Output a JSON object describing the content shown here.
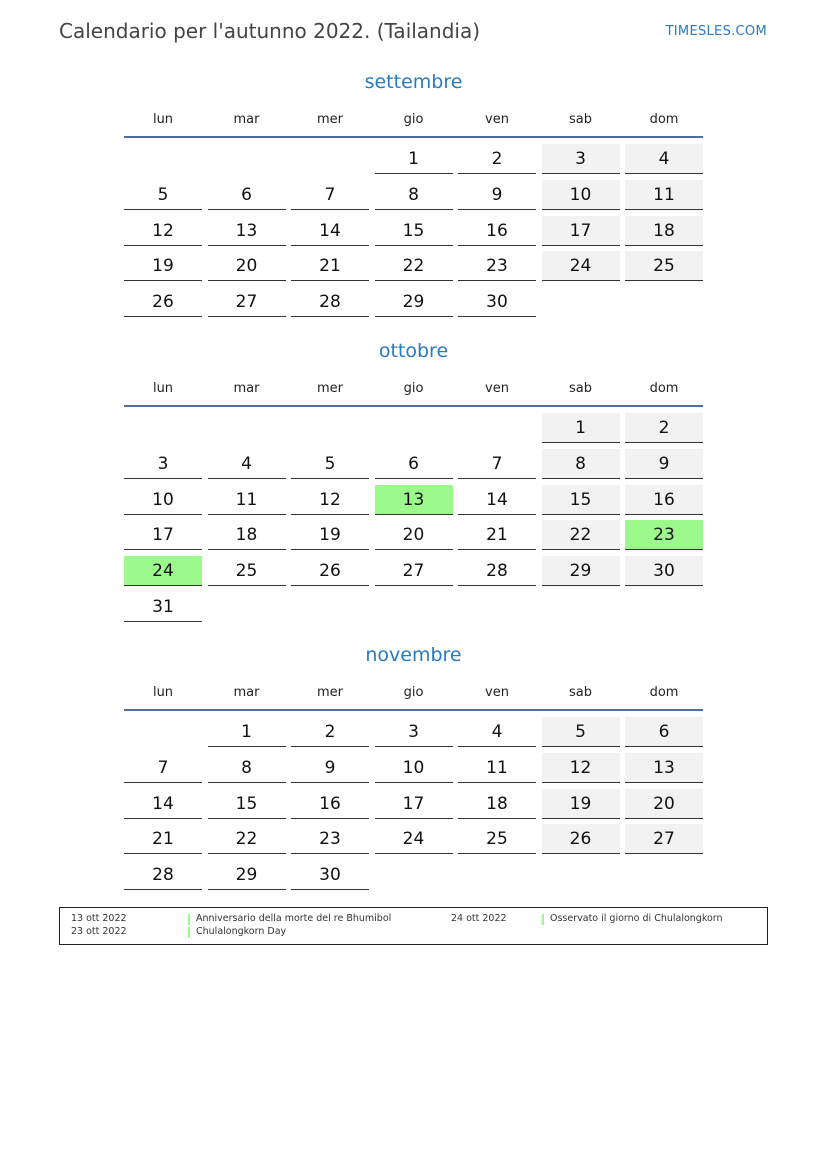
{
  "header": {
    "title": "Calendario per l'autunno 2022. (Tailandia)",
    "brand": "TIMESLES.COM"
  },
  "weekdays": [
    "lun",
    "mar",
    "mer",
    "gio",
    "ven",
    "sab",
    "dom"
  ],
  "colors": {
    "accent": "#2a7ac0",
    "weekend": "#f2f2f2",
    "holiday": "#9cfa8c",
    "rule": "#4f6d9e"
  },
  "months": [
    {
      "name": "settembre",
      "weeks": [
        [
          null,
          null,
          null,
          1,
          2,
          3,
          4
        ],
        [
          5,
          6,
          7,
          8,
          9,
          10,
          11
        ],
        [
          12,
          13,
          14,
          15,
          16,
          17,
          18
        ],
        [
          19,
          20,
          21,
          22,
          23,
          24,
          25
        ],
        [
          26,
          27,
          28,
          29,
          30,
          null,
          null
        ]
      ],
      "holidays": []
    },
    {
      "name": "ottobre",
      "weeks": [
        [
          null,
          null,
          null,
          null,
          null,
          1,
          2
        ],
        [
          3,
          4,
          5,
          6,
          7,
          8,
          9
        ],
        [
          10,
          11,
          12,
          13,
          14,
          15,
          16
        ],
        [
          17,
          18,
          19,
          20,
          21,
          22,
          23
        ],
        [
          24,
          25,
          26,
          27,
          28,
          29,
          30
        ],
        [
          31,
          null,
          null,
          null,
          null,
          null,
          null
        ]
      ],
      "holidays": [
        13,
        23,
        24
      ]
    },
    {
      "name": "novembre",
      "weeks": [
        [
          null,
          1,
          2,
          3,
          4,
          5,
          6
        ],
        [
          7,
          8,
          9,
          10,
          11,
          12,
          13
        ],
        [
          14,
          15,
          16,
          17,
          18,
          19,
          20
        ],
        [
          21,
          22,
          23,
          24,
          25,
          26,
          27
        ],
        [
          28,
          29,
          30,
          null,
          null,
          null,
          null
        ]
      ],
      "holidays": []
    }
  ],
  "legend": [
    {
      "date": "13 ott 2022",
      "name": "Anniversario della morte del re Bhumibol"
    },
    {
      "date": "23 ott 2022",
      "name": "Chulalongkorn Day"
    },
    {
      "date": "24 ott 2022",
      "name": "Osservato il giorno di Chulalongkorn"
    }
  ]
}
